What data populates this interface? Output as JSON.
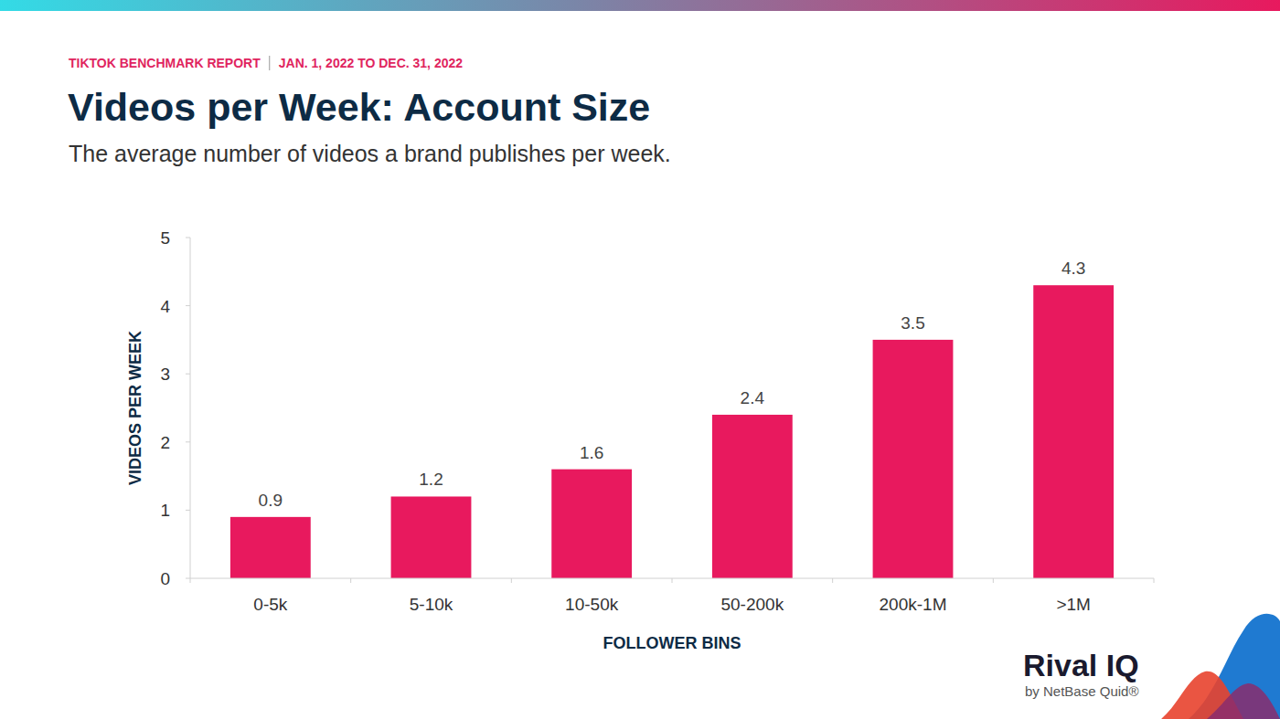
{
  "chart_data": {
    "type": "bar",
    "title": "Videos per Week: Account Size",
    "subtitle": "The average number of videos a brand publishes per week.",
    "x_label": "FOLLOWER BINS",
    "y_label": "VIDEOS PER WEEK",
    "annotations": [
      "TIKTOK BENCHMARK REPORT",
      "JAN. 1, 2022 TO DEC. 31, 2022",
      "Rival IQ",
      "by NetBase Quid®"
    ],
    "categories": [
      "0-5k",
      "5-10k",
      "10-50k",
      "50-200k",
      "200k-1M",
      ">1M"
    ],
    "values": [
      0.9,
      1.2,
      1.6,
      2.4,
      3.5,
      4.3
    ],
    "color": "#e8195e",
    "ylim": [
      0,
      5
    ],
    "yticks": [
      0,
      1,
      2,
      3,
      4,
      5
    ],
    "grid": false,
    "data_labels": true
  }
}
